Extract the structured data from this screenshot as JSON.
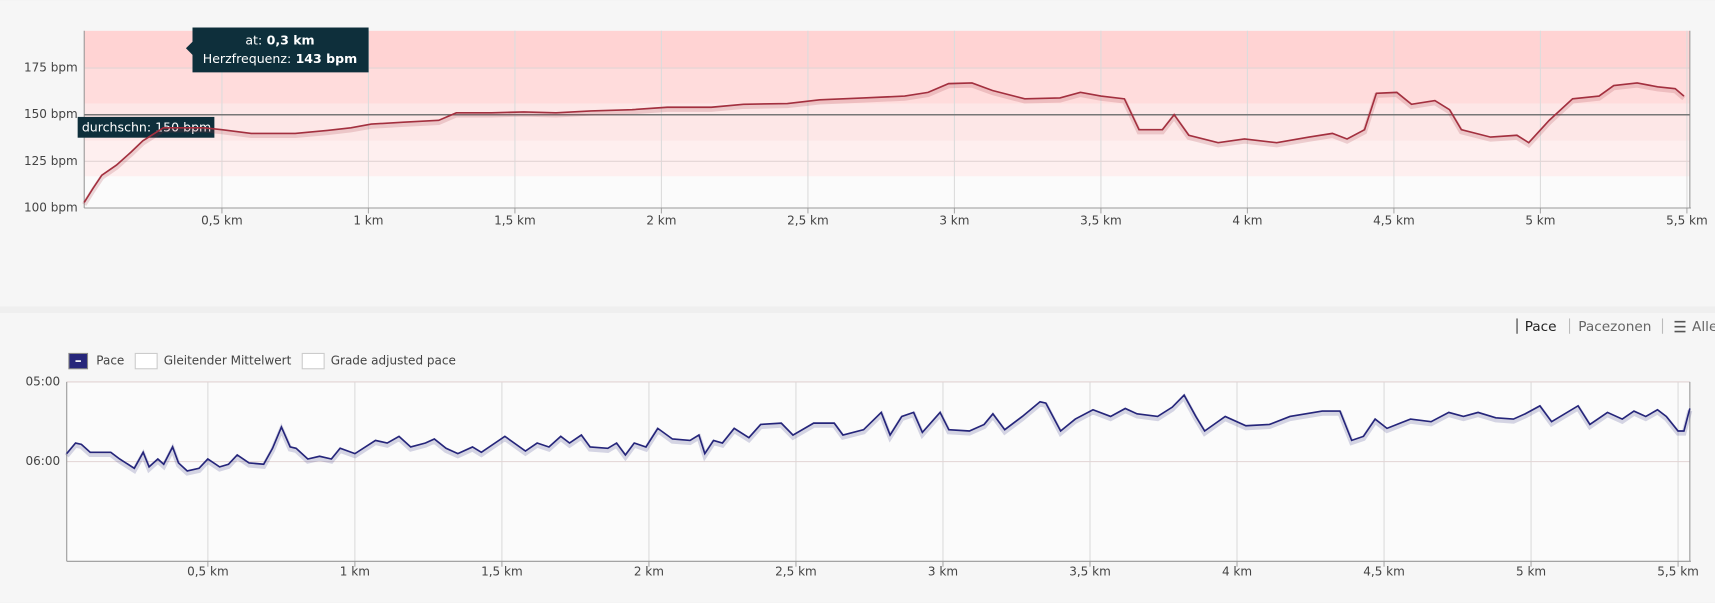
{
  "chart_data": [
    {
      "type": "line",
      "color": "#a3303f",
      "xlim": [
        0.03,
        5.51
      ],
      "ylim": [
        100,
        195
      ],
      "xticks": [
        {
          "value": 0.5,
          "label": "0,5 km"
        },
        {
          "value": 1,
          "label": "1 km"
        },
        {
          "value": 1.5,
          "label": "1,5 km"
        },
        {
          "value": 2,
          "label": "2 km"
        },
        {
          "value": 2.5,
          "label": "2,5 km"
        },
        {
          "value": 3,
          "label": "3 km"
        },
        {
          "value": 3.5,
          "label": "3,5 km"
        },
        {
          "value": 4,
          "label": "4 km"
        },
        {
          "value": 4.5,
          "label": "4,5 km"
        },
        {
          "value": 5,
          "label": "5 km"
        },
        {
          "value": 5.5,
          "label": "5,5 km"
        }
      ],
      "yticks": [
        {
          "value": 100,
          "label": "100 bpm"
        },
        {
          "value": 125,
          "label": "125 bpm"
        },
        {
          "value": 150,
          "label": "150 bpm"
        },
        {
          "value": 175,
          "label": "175 bpm"
        }
      ],
      "grid": true,
      "zones": [
        {
          "from": 175,
          "to": 195,
          "color": "#ffd3d3"
        },
        {
          "from": 156,
          "to": 175,
          "color": "#ffdcdc"
        },
        {
          "from": 136,
          "to": 156,
          "color": "#fde7e7"
        },
        {
          "from": 117,
          "to": 136,
          "color": "#feefef"
        }
      ],
      "average": {
        "value": 150,
        "label": "durchschn: 150 bpm"
      },
      "tooltip": [
        {
          "label": "at:",
          "value": "0,3 km"
        },
        {
          "label": "Herzfrequenz:",
          "value": "143 bpm"
        }
      ],
      "x": [
        0.03,
        0.06,
        0.09,
        0.14,
        0.19,
        0.23,
        0.3,
        0.34,
        0.44,
        0.5,
        0.6,
        0.75,
        0.86,
        0.94,
        1.01,
        1.12,
        1.24,
        1.3,
        1.42,
        1.53,
        1.64,
        1.76,
        1.9,
        2.02,
        2.17,
        2.28,
        2.43,
        2.54,
        2.69,
        2.83,
        2.91,
        2.98,
        3.06,
        3.13,
        3.24,
        3.36,
        3.43,
        3.5,
        3.58,
        3.63,
        3.71,
        3.75,
        3.8,
        3.9,
        3.99,
        4.1,
        4.21,
        4.29,
        4.34,
        4.4,
        4.44,
        4.51,
        4.56,
        4.64,
        4.69,
        4.73,
        4.83,
        4.92,
        4.96,
        5.03,
        5.11,
        5.2,
        5.25,
        5.33,
        5.4,
        5.46,
        5.49
      ],
      "values": [
        103,
        110.5,
        117.6,
        123,
        130,
        136,
        143,
        143,
        143,
        142,
        140,
        140,
        141.6,
        143,
        145,
        146,
        147,
        151,
        151,
        151.5,
        151,
        152,
        152.7,
        154,
        154,
        155.6,
        156,
        158,
        159,
        160,
        162,
        166.7,
        167,
        163,
        158.5,
        159,
        162,
        160,
        158.5,
        142,
        142,
        150,
        139,
        135,
        137,
        135,
        138,
        140,
        137,
        142,
        161.5,
        162,
        155.6,
        157.6,
        152.7,
        142,
        138,
        139,
        135,
        147,
        158.5,
        160,
        165.6,
        167,
        165,
        164,
        160
      ]
    },
    {
      "type": "line",
      "xlim": [
        0.02,
        5.54
      ],
      "ylim": [
        300,
        435
      ],
      "y_reversed": true,
      "xticks": [
        {
          "value": 0.5,
          "label": "0,5 km"
        },
        {
          "value": 1,
          "label": "1 km"
        },
        {
          "value": 1.5,
          "label": "1,5 km"
        },
        {
          "value": 2,
          "label": "2 km"
        },
        {
          "value": 2.5,
          "label": "2,5 km"
        },
        {
          "value": 3,
          "label": "3 km"
        },
        {
          "value": 3.5,
          "label": "3,5 km"
        },
        {
          "value": 4,
          "label": "4 km"
        },
        {
          "value": 4.5,
          "label": "4,5 km"
        },
        {
          "value": 5,
          "label": "5 km"
        },
        {
          "value": 5.5,
          "label": "5,5 km"
        }
      ],
      "yticks": [
        {
          "value": 300,
          "label": "05:00"
        },
        {
          "value": 360,
          "label": "06:00"
        }
      ],
      "grid": true,
      "inactive_series": [
        "Gleitender Mittelwert",
        "Grade adjusted pace"
      ],
      "series": [
        {
          "name": "Pace",
          "color": "#25257a",
          "x": [
            0.02,
            0.05,
            0.07,
            0.1,
            0.17,
            0.2,
            0.25,
            0.28,
            0.3,
            0.33,
            0.35,
            0.38,
            0.4,
            0.43,
            0.47,
            0.5,
            0.54,
            0.57,
            0.6,
            0.64,
            0.69,
            0.72,
            0.75,
            0.78,
            0.8,
            0.84,
            0.88,
            0.92,
            0.95,
            1.0,
            1.07,
            1.11,
            1.15,
            1.19,
            1.24,
            1.27,
            1.31,
            1.35,
            1.4,
            1.43,
            1.51,
            1.58,
            1.62,
            1.66,
            1.7,
            1.73,
            1.77,
            1.8,
            1.86,
            1.89,
            1.92,
            1.95,
            1.99,
            2.03,
            2.08,
            2.14,
            2.17,
            2.19,
            2.22,
            2.25,
            2.29,
            2.34,
            2.38,
            2.45,
            2.49,
            2.56,
            2.63,
            2.66,
            2.73,
            2.79,
            2.82,
            2.86,
            2.9,
            2.93,
            2.99,
            3.02,
            3.09,
            3.14,
            3.17,
            3.21,
            3.27,
            3.33,
            3.35,
            3.4,
            3.45,
            3.51,
            3.57,
            3.62,
            3.66,
            3.73,
            3.78,
            3.82,
            3.86,
            3.89,
            3.96,
            4.03,
            4.11,
            4.18,
            4.29,
            4.35,
            4.39,
            4.43,
            4.47,
            4.51,
            4.59,
            4.66,
            4.72,
            4.77,
            4.82,
            4.88,
            4.94,
            4.98,
            5.03,
            5.07,
            5.16,
            5.2,
            5.26,
            5.31,
            5.35,
            5.39,
            5.43,
            5.46,
            5.5,
            5.52,
            5.54
          ],
          "values": [
            354,
            346,
            347,
            353,
            353,
            358,
            365,
            353,
            364,
            358,
            362,
            349,
            361,
            367,
            365,
            358,
            364,
            362,
            355,
            361,
            362,
            350,
            334,
            349,
            350,
            358,
            356,
            358,
            350,
            354,
            344,
            346,
            341,
            349,
            346,
            343,
            350,
            354,
            349,
            353,
            341,
            352,
            346,
            349,
            341,
            346,
            340,
            349,
            350,
            346,
            355,
            346,
            349,
            335,
            343,
            344,
            340,
            354,
            344,
            346,
            335,
            342,
            332,
            331,
            340,
            331,
            331,
            340,
            336,
            323,
            340,
            326,
            323,
            338,
            323,
            336,
            337,
            332,
            324,
            336,
            326,
            315,
            316,
            337,
            328,
            321,
            326,
            320,
            324,
            326,
            319,
            310,
            326,
            337,
            326,
            333,
            332,
            326,
            322,
            322,
            344,
            341,
            328,
            335,
            328,
            330,
            323,
            326,
            323,
            327,
            328,
            324,
            318,
            330,
            318,
            332,
            323,
            328,
            322,
            326,
            321,
            326,
            337,
            337,
            320
          ]
        }
      ]
    }
  ],
  "tabs": [
    "Pace",
    "Pacezonen",
    "Alle"
  ]
}
